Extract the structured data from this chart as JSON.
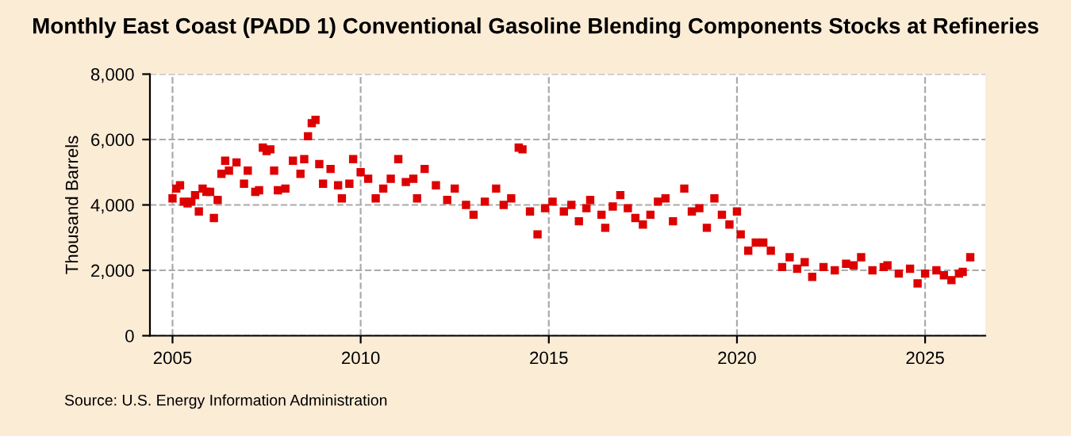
{
  "chart_data": {
    "type": "scatter",
    "title": "Monthly East Coast (PADD 1) Conventional Gasoline Blending Components Stocks at Refineries",
    "ylabel": "Thousand Barrels",
    "annotations": [
      "Source: U.S. Energy Information Administration"
    ],
    "marker": "square",
    "grid": true,
    "xlim": [
      2004.4,
      2026.6
    ],
    "xticks": [
      2005,
      2010,
      2015,
      2020,
      2025
    ],
    "ylim": [
      0,
      8000
    ],
    "yticks": [
      {
        "value": 0,
        "label": "0"
      },
      {
        "value": 2000,
        "label": "2,000"
      },
      {
        "value": 4000,
        "label": "4,000"
      },
      {
        "value": 6000,
        "label": "6,000"
      },
      {
        "value": 8000,
        "label": "8,000"
      }
    ],
    "series": [
      {
        "color": "#dd0000",
        "x": [
          2005.0,
          2005.1,
          2005.2,
          2005.3,
          2005.4,
          2005.5,
          2005.6,
          2005.7,
          2005.8,
          2005.9,
          2006.0,
          2006.1,
          2006.2,
          2006.3,
          2006.4,
          2006.5,
          2006.7,
          2006.9,
          2007.0,
          2007.2,
          2007.3,
          2007.4,
          2007.5,
          2007.6,
          2007.7,
          2007.8,
          2008.0,
          2008.2,
          2008.4,
          2008.5,
          2008.6,
          2008.7,
          2008.8,
          2008.9,
          2009.0,
          2009.2,
          2009.4,
          2009.5,
          2009.7,
          2009.8,
          2010.0,
          2010.2,
          2010.4,
          2010.6,
          2010.8,
          2011.0,
          2011.2,
          2011.4,
          2011.5,
          2011.7,
          2012.0,
          2012.3,
          2012.5,
          2012.8,
          2013.0,
          2013.3,
          2013.6,
          2013.8,
          2014.0,
          2014.2,
          2014.3,
          2014.5,
          2014.7,
          2014.9,
          2015.1,
          2015.4,
          2015.6,
          2015.8,
          2016.0,
          2016.1,
          2016.4,
          2016.5,
          2016.7,
          2016.9,
          2017.1,
          2017.3,
          2017.5,
          2017.7,
          2017.9,
          2018.1,
          2018.3,
          2018.6,
          2018.8,
          2019.0,
          2019.2,
          2019.4,
          2019.6,
          2019.8,
          2020.0,
          2020.1,
          2020.3,
          2020.5,
          2020.7,
          2020.9,
          2021.2,
          2021.4,
          2021.6,
          2021.8,
          2022.0,
          2022.3,
          2022.6,
          2022.9,
          2023.1,
          2023.3,
          2023.6,
          2023.9,
          2024.0,
          2024.3,
          2024.6,
          2024.8,
          2025.0,
          2025.3,
          2025.5,
          2025.7,
          2025.9,
          2026.0,
          2026.2
        ],
        "values": [
          4200,
          4500,
          4600,
          4100,
          4050,
          4100,
          4300,
          3800,
          4500,
          4400,
          4400,
          3600,
          4150,
          4950,
          5350,
          5050,
          5300,
          4650,
          5050,
          4400,
          4450,
          5750,
          5650,
          5700,
          5050,
          4450,
          4500,
          5350,
          4950,
          5400,
          6100,
          6500,
          6600,
          5250,
          4650,
          5100,
          4600,
          4200,
          4650,
          5400,
          5000,
          4800,
          4200,
          4500,
          4800,
          5400,
          4700,
          4800,
          4200,
          5100,
          4600,
          4150,
          4500,
          4000,
          3700,
          4100,
          4500,
          4000,
          4200,
          5750,
          5700,
          3800,
          3100,
          3900,
          4100,
          3800,
          4000,
          3500,
          3900,
          4150,
          3700,
          3300,
          3950,
          4300,
          3900,
          3600,
          3400,
          3700,
          4100,
          4200,
          3500,
          4500,
          3800,
          3900,
          3300,
          4200,
          3700,
          3400,
          3800,
          3100,
          2600,
          2850,
          2850,
          2600,
          2100,
          2400,
          2050,
          2250,
          1800,
          2100,
          2000,
          2200,
          2150,
          2400,
          2000,
          2100,
          2150,
          1900,
          2050,
          1600,
          1900,
          2000,
          1850,
          1700,
          1900,
          1950,
          2400
        ]
      }
    ]
  }
}
